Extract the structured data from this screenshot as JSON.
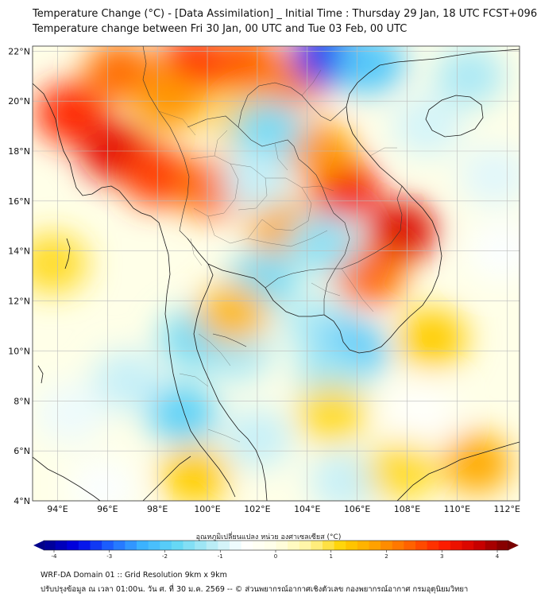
{
  "header": {
    "title_line1": "Temperature Change (°C) - [Data Assimilation] _ Initial Time : Thursday 29 Jan, 18 UTC FCST+096",
    "title_line2": "Temperature change between Fri 30 Jan, 00 UTC and Tue 03 Feb, 00 UTC"
  },
  "map": {
    "lon_labels": [
      "94°E",
      "96°E",
      "98°E",
      "100°E",
      "102°E",
      "104°E",
      "106°E",
      "108°E",
      "110°E",
      "112°E"
    ],
    "lat_labels": [
      "22°N",
      "20°N",
      "18°N",
      "16°N",
      "14°N",
      "12°N",
      "10°N",
      "8°N",
      "6°N",
      "4°N"
    ],
    "lon_values": [
      94,
      96,
      98,
      100,
      102,
      104,
      106,
      108,
      110,
      112
    ],
    "lat_values": [
      22,
      20,
      18,
      16,
      14,
      12,
      10,
      8,
      6,
      4
    ],
    "extent": {
      "lon_min": 93,
      "lon_max": 112.5,
      "lat_min": 4,
      "lat_max": 22.2
    },
    "anomalies": [
      {
        "lon": 94.5,
        "lat": 19.5,
        "dt": 2.8
      },
      {
        "lon": 96.3,
        "lat": 18.0,
        "dt": 3.2
      },
      {
        "lon": 98.0,
        "lat": 17.0,
        "dt": 2.6
      },
      {
        "lon": 96.5,
        "lat": 21.2,
        "dt": 2.2
      },
      {
        "lon": 99.5,
        "lat": 21.5,
        "dt": 2.8
      },
      {
        "lon": 101.5,
        "lat": 21.5,
        "dt": 2.4
      },
      {
        "lon": 103.5,
        "lat": 21.0,
        "dt": 2.0
      },
      {
        "lon": 100.2,
        "lat": 16.5,
        "dt": 2.2
      },
      {
        "lon": 105.5,
        "lat": 16.5,
        "dt": 3.0
      },
      {
        "lon": 107.8,
        "lat": 14.8,
        "dt": 3.3
      },
      {
        "lon": 106.5,
        "lat": 13.0,
        "dt": 2.2
      },
      {
        "lon": 104.5,
        "lat": 18.0,
        "dt": 1.8
      },
      {
        "lon": 103.0,
        "lat": 15.0,
        "dt": 1.6
      },
      {
        "lon": 98.5,
        "lat": 20.0,
        "dt": 1.8
      },
      {
        "lon": 101.5,
        "lat": 19.3,
        "dt": 1.2
      },
      {
        "lon": 93.8,
        "lat": 13.5,
        "dt": 1.0
      },
      {
        "lon": 104.8,
        "lat": 21.8,
        "dt": -3.2
      },
      {
        "lon": 106.5,
        "lat": 21.5,
        "dt": -2.0
      },
      {
        "lon": 110.5,
        "lat": 21.0,
        "dt": -1.2
      },
      {
        "lon": 108.8,
        "lat": 19.0,
        "dt": -0.9
      },
      {
        "lon": 111.5,
        "lat": 17.0,
        "dt": -0.8
      },
      {
        "lon": 111.8,
        "lat": 14.0,
        "dt": -0.6
      },
      {
        "lon": 102.4,
        "lat": 18.8,
        "dt": -1.6
      },
      {
        "lon": 102.0,
        "lat": 16.8,
        "dt": -1.0
      },
      {
        "lon": 104.6,
        "lat": 14.3,
        "dt": -1.4
      },
      {
        "lon": 102.2,
        "lat": 12.8,
        "dt": -1.6
      },
      {
        "lon": 101.2,
        "lat": 10.0,
        "dt": -1.2
      },
      {
        "lon": 99.5,
        "lat": 10.5,
        "dt": -1.6
      },
      {
        "lon": 99.0,
        "lat": 7.5,
        "dt": -1.8
      },
      {
        "lon": 96.8,
        "lat": 8.8,
        "dt": -1.0
      },
      {
        "lon": 104.5,
        "lat": 11.0,
        "dt": -1.2
      },
      {
        "lon": 105.8,
        "lat": 10.0,
        "dt": -2.0
      },
      {
        "lon": 105.0,
        "lat": 9.0,
        "dt": -1.3
      },
      {
        "lon": 102.0,
        "lat": 6.5,
        "dt": -1.0
      },
      {
        "lon": 108.5,
        "lat": 7.5,
        "dt": -0.5
      },
      {
        "lon": 105.5,
        "lat": 4.8,
        "dt": -1.0
      },
      {
        "lon": 94.5,
        "lat": 7.5,
        "dt": -0.7
      },
      {
        "lon": 105.0,
        "lat": 7.5,
        "dt": 1.0
      },
      {
        "lon": 109.0,
        "lat": 10.5,
        "dt": 1.2
      },
      {
        "lon": 110.8,
        "lat": 5.5,
        "dt": 1.6
      },
      {
        "lon": 107.8,
        "lat": 5.2,
        "dt": 1.0
      },
      {
        "lon": 99.5,
        "lat": 5.0,
        "dt": 1.2
      },
      {
        "lon": 101.0,
        "lat": 11.5,
        "dt": 1.4
      },
      {
        "lon": 95.8,
        "lat": 4.5,
        "dt": -0.6
      }
    ]
  },
  "colorbar": {
    "title": "อุณหภูมิเปลี่ยนแปลง หน่วย องศาเซลเซียส (°C)",
    "tick_labels": [
      "-4",
      "-3",
      "-2",
      "-1",
      "0",
      "1",
      "2",
      "3",
      "4"
    ],
    "tick_values": [
      -4,
      -3,
      -2,
      -1,
      0,
      1,
      2,
      3,
      4
    ],
    "min": -4,
    "max": 4,
    "stops": [
      "#00008b",
      "#0000e6",
      "#1e64ff",
      "#3cb4ff",
      "#64d7f5",
      "#b4ebf5",
      "#ffffff",
      "#ffffe6",
      "#fff5a0",
      "#ffd200",
      "#ffa000",
      "#ff6400",
      "#ff1e00",
      "#d20000",
      "#780000"
    ]
  },
  "footer": {
    "line1": "WRF-DA Domain 01 :: Grid Resolution 9km x 9km",
    "line2": "ปรับปรุงข้อมูล ณ เวลา 01:00น. วัน ศ. ที่ 30 ม.ค. 2569 -- © ส่วนพยากรณ์อากาศเชิงตัวเลข กองพยากรณ์อากาศ กรมอุตุนิยมวิทยา"
  }
}
